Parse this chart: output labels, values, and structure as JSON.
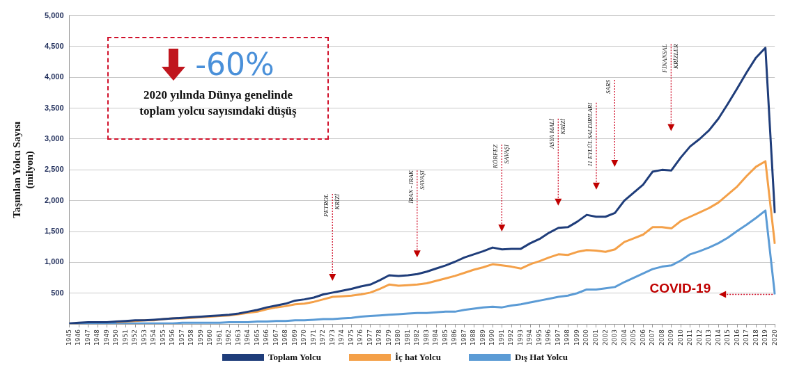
{
  "chart_data": {
    "type": "line",
    "ylabel": "Taşınılan Yolcu Sayısı\n(milyon)",
    "categories": [
      "1945",
      "1946",
      "1947",
      "1948",
      "1949",
      "1950",
      "1951",
      "1952",
      "1953",
      "1954",
      "1955",
      "1956",
      "1957",
      "1958",
      "1959",
      "1960",
      "1961",
      "1962",
      "1963",
      "1964",
      "1965",
      "1966",
      "1967",
      "1968",
      "1969",
      "1970",
      "1971",
      "1972",
      "1973",
      "1974",
      "1975",
      "1976",
      "1977",
      "1978",
      "1979",
      "1980",
      "1981",
      "1982",
      "1983",
      "1984",
      "1985",
      "1986",
      "1987",
      "1988",
      "1989",
      "1990",
      "1991",
      "1992",
      "1993",
      "1994",
      "1995",
      "1996",
      "1997",
      "1998",
      "1999",
      "2000",
      "2001",
      "2002",
      "2003",
      "2004",
      "2005",
      "2006",
      "2007",
      "2008",
      "2009",
      "2010",
      "2011",
      "2012",
      "2013",
      "2014",
      "2015",
      "2016",
      "2017",
      "2018",
      "2019",
      "2020"
    ],
    "series": [
      {
        "name": "Toplam Yolcu",
        "color": "#1f3d7a",
        "values": [
          10,
          20,
          30,
          30,
          30,
          40,
          50,
          60,
          60,
          70,
          80,
          90,
          100,
          110,
          120,
          130,
          140,
          150,
          170,
          200,
          230,
          270,
          300,
          330,
          380,
          400,
          430,
          480,
          510,
          540,
          570,
          610,
          640,
          710,
          790,
          780,
          790,
          810,
          850,
          900,
          950,
          1010,
          1080,
          1130,
          1180,
          1240,
          1210,
          1220,
          1220,
          1310,
          1380,
          1480,
          1560,
          1570,
          1660,
          1770,
          1740,
          1740,
          1800,
          2000,
          2130,
          2260,
          2470,
          2500,
          2490,
          2700,
          2880,
          3000,
          3140,
          3330,
          3570,
          3820,
          4080,
          4320,
          4480,
          1800
        ]
      },
      {
        "name": "İç hat Yolcu",
        "color": "#f4a048",
        "values": [
          null,
          null,
          null,
          null,
          null,
          30,
          40,
          50,
          60,
          60,
          80,
          90,
          90,
          100,
          110,
          120,
          130,
          140,
          160,
          180,
          200,
          240,
          270,
          290,
          320,
          330,
          360,
          400,
          440,
          450,
          460,
          480,
          510,
          570,
          640,
          620,
          630,
          640,
          660,
          700,
          740,
          780,
          830,
          880,
          920,
          970,
          950,
          930,
          900,
          970,
          1020,
          1080,
          1130,
          1120,
          1170,
          1200,
          1190,
          1170,
          1210,
          1330,
          1390,
          1450,
          1570,
          1570,
          1550,
          1670,
          1740,
          1810,
          1880,
          1970,
          2100,
          2230,
          2400,
          2550,
          2640,
          1300
        ]
      },
      {
        "name": "Dış Hat Yolcu",
        "color": "#5b9bd5",
        "values": [
          0,
          0,
          0,
          0,
          0,
          10,
          10,
          10,
          10,
          10,
          10,
          10,
          20,
          20,
          20,
          20,
          20,
          30,
          30,
          30,
          40,
          40,
          50,
          50,
          60,
          60,
          70,
          80,
          80,
          90,
          100,
          120,
          130,
          140,
          150,
          160,
          170,
          180,
          180,
          190,
          200,
          200,
          230,
          250,
          270,
          280,
          270,
          300,
          320,
          350,
          380,
          410,
          440,
          460,
          500,
          560,
          560,
          580,
          600,
          680,
          750,
          820,
          890,
          930,
          950,
          1030,
          1130,
          1180,
          1240,
          1310,
          1400,
          1510,
          1610,
          1720,
          1840,
          480
        ]
      }
    ],
    "ylim": [
      0,
      5000
    ],
    "yticks": [
      {
        "value": 500,
        "label": "500"
      },
      {
        "value": 1000,
        "label": "1,000"
      },
      {
        "value": 1500,
        "label": "1,500"
      },
      {
        "value": 2000,
        "label": "2,000"
      },
      {
        "value": 2500,
        "label": "2,500"
      },
      {
        "value": 3000,
        "label": "3,000"
      },
      {
        "value": 3500,
        "label": "3,500"
      },
      {
        "value": 4000,
        "label": "4,000"
      },
      {
        "value": 4500,
        "label": "4,500"
      },
      {
        "value": 5000,
        "label": "5,000"
      }
    ],
    "grid": "y",
    "legend": "bottom",
    "marker": "none",
    "line_style": "solid",
    "annotations": [
      "-60%",
      "2020 yılında Dünya genelinde\ntoplam yolcu sayısındaki düşüş",
      "PETROL\nKRİZİ",
      "İRAN - IRAK\nSAVAŞI",
      "KÖRFEZ\nSAVAŞI",
      "ASYA MALİ\nKRİZİ",
      "11 EYLÜL SALDIRILARI",
      "SARS",
      "FİNANSAL\nKRİZLER",
      {
        "text": "COVID-19",
        "x": "2020",
        "y": 480
      }
    ]
  }
}
